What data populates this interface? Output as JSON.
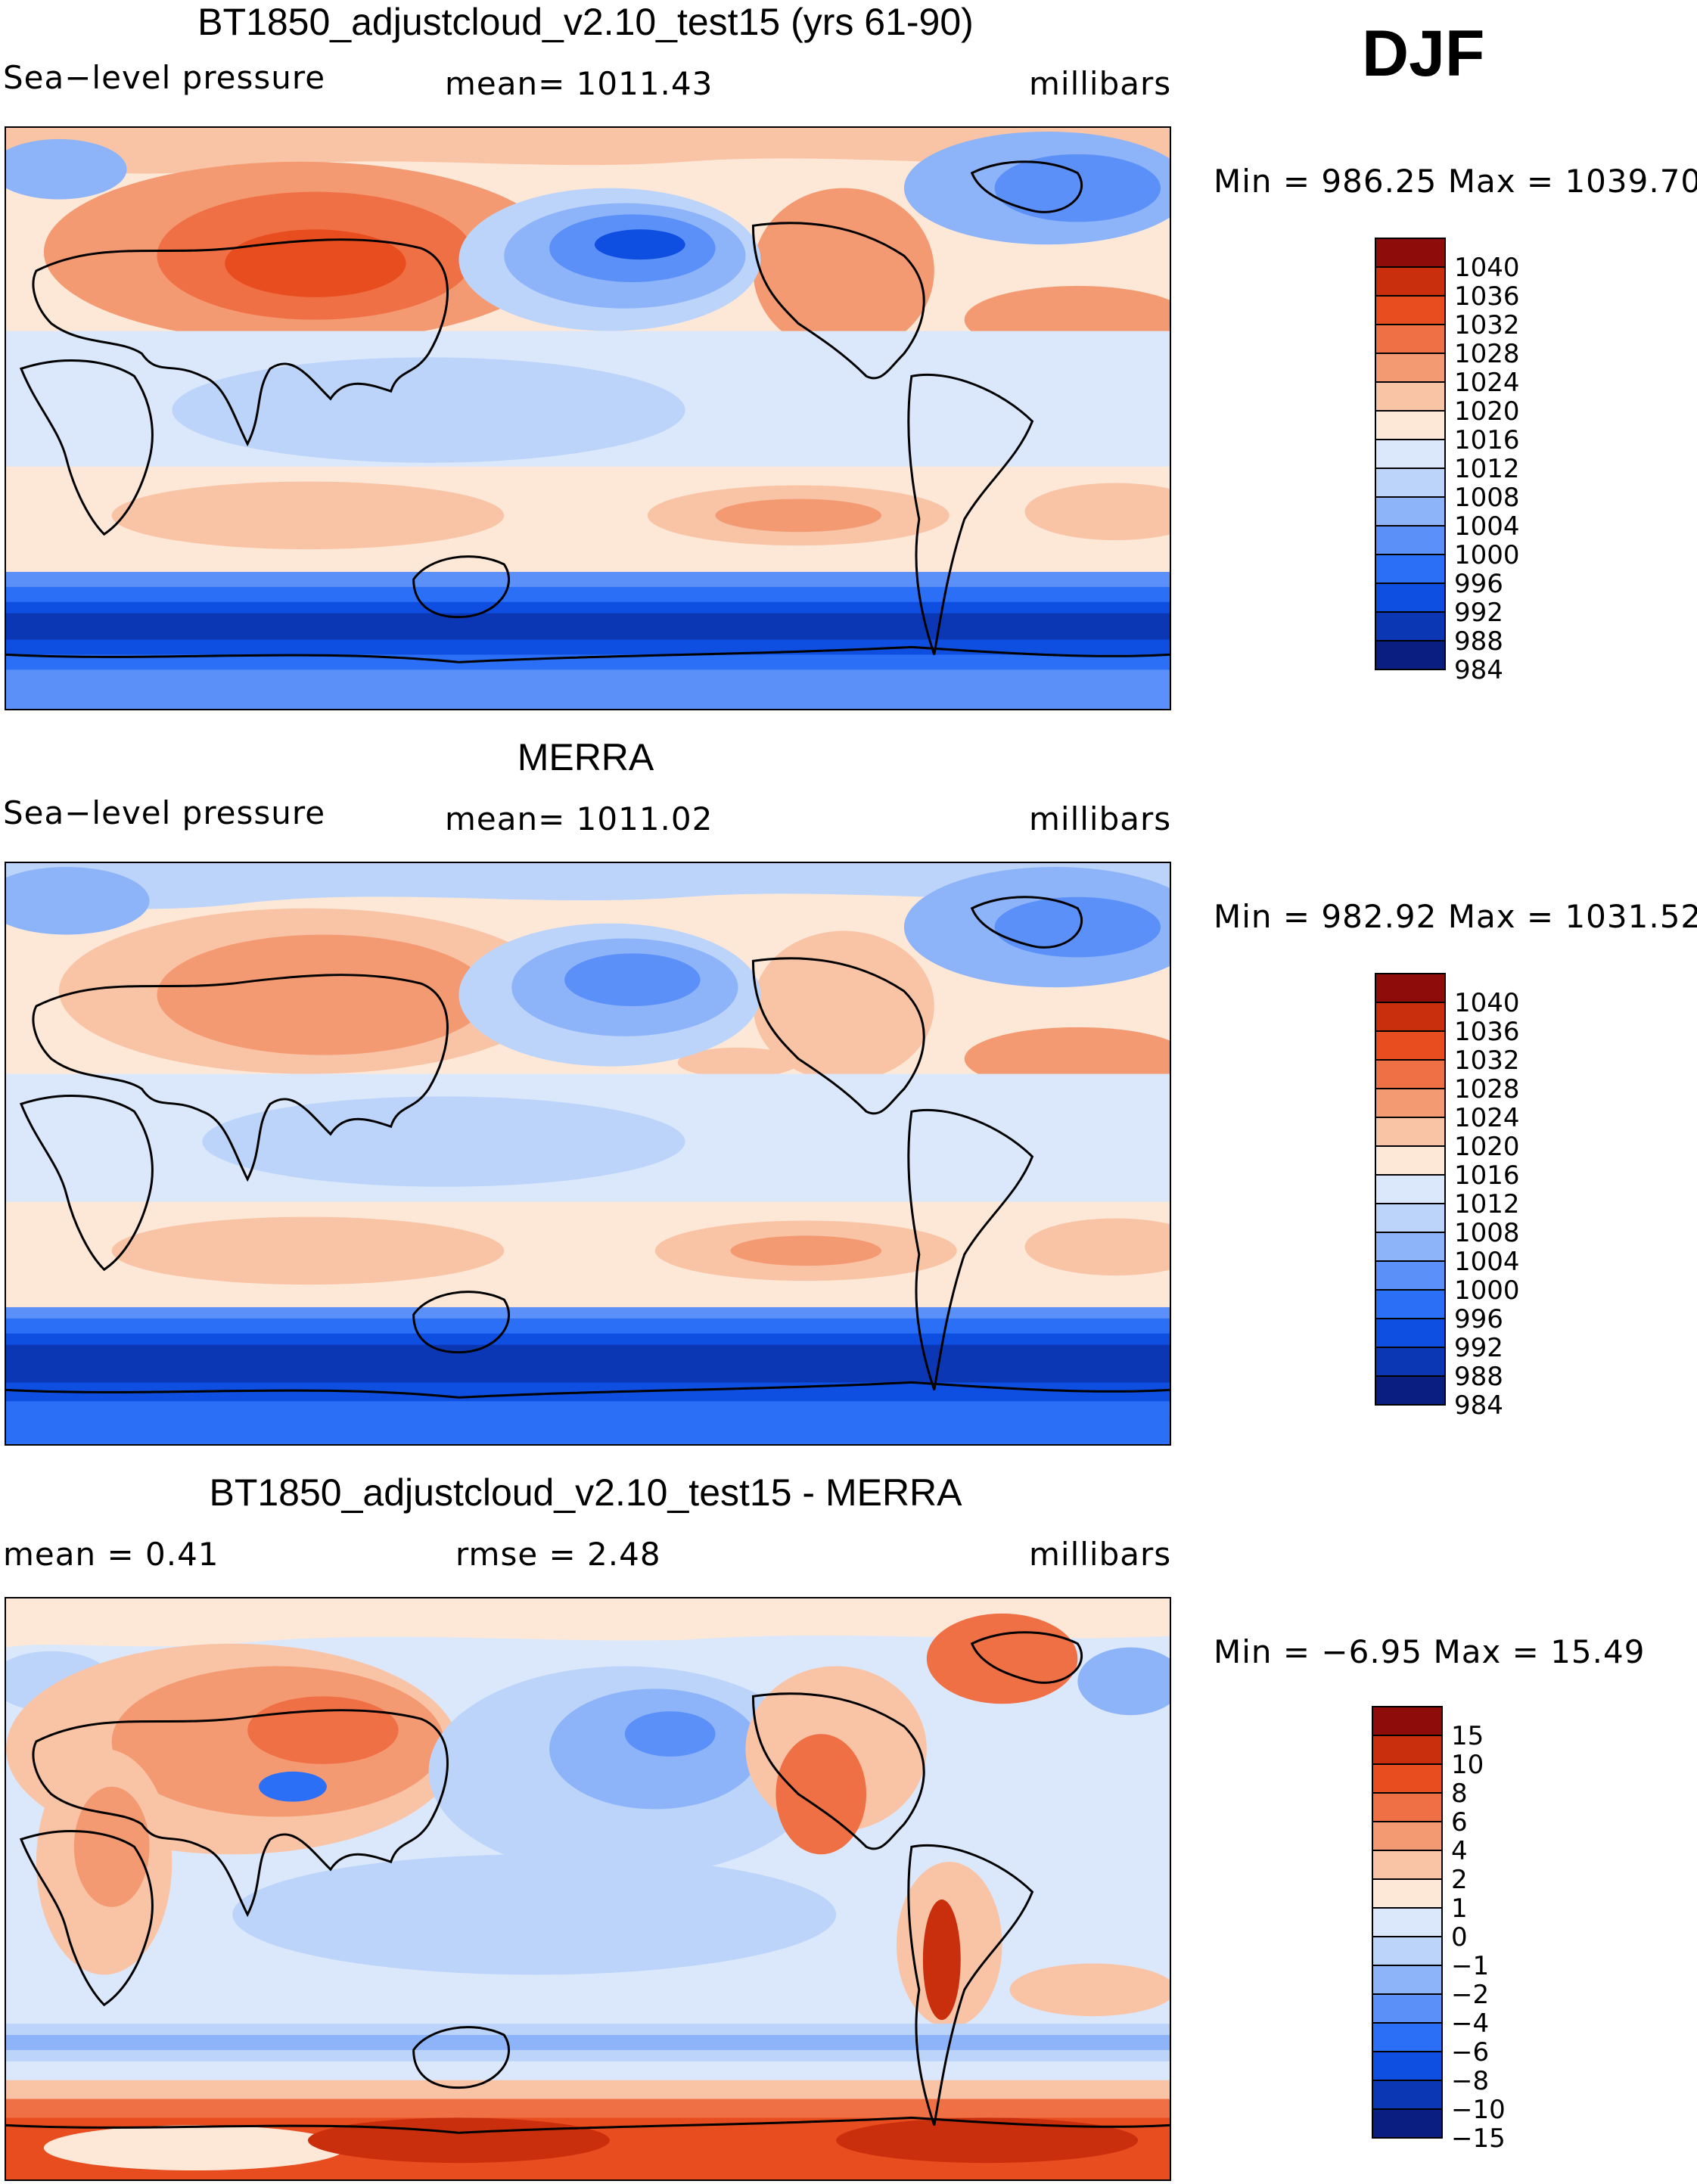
{
  "season": "DJF",
  "colors": {
    "pressure": [
      "#0a1e82",
      "#0b37b4",
      "#0e4ee0",
      "#2a6ff5",
      "#5a90f7",
      "#8db3f8",
      "#bcd4f9",
      "#dbe8fb",
      "#fde8d8",
      "#f9c4a6",
      "#f49a72",
      "#f07046",
      "#e84d20",
      "#c92f0c",
      "#8e0d0a"
    ],
    "anomaly": [
      "#0a1e82",
      "#0b37b4",
      "#0e4ee0",
      "#2a6ff5",
      "#5a90f7",
      "#8db3f8",
      "#bcd4f9",
      "#dbe8fb",
      "#fde8d8",
      "#f9c4a6",
      "#f49a72",
      "#f07046",
      "#e84d20",
      "#c92f0c",
      "#8e0d0a"
    ],
    "land_outline": "#000000"
  },
  "panels": [
    {
      "title": "BT1850_adjustcloud_v2.10_test15 (yrs 61-90)",
      "left_label": "Sea−level  pressure",
      "center_label": "mean=  1011.43",
      "right_label": "millibars",
      "min_max": "Min  =  986.25  Max  =  1039.70",
      "colorbar_labels": [
        "1040",
        "1036",
        "1032",
        "1028",
        "1024",
        "1020",
        "1016",
        "1012",
        "1008",
        "1004",
        "1000",
        "996",
        "992",
        "988",
        "984"
      ]
    },
    {
      "title": "MERRA",
      "left_label": "Sea−level  pressure",
      "center_label": "mean=  1011.02",
      "right_label": "millibars",
      "min_max": "Min  =  982.92  Max  =  1031.52",
      "colorbar_labels": [
        "1040",
        "1036",
        "1032",
        "1028",
        "1024",
        "1020",
        "1016",
        "1012",
        "1008",
        "1004",
        "1000",
        "996",
        "992",
        "988",
        "984"
      ]
    },
    {
      "title": "BT1850_adjustcloud_v2.10_test15 - MERRA",
      "left_label": "mean  =      0.41",
      "center_label": "rmse  =      2.48",
      "right_label": "millibars",
      "min_max": "Min  =    −6.95  Max  =     15.49",
      "colorbar_labels": [
        "15",
        "10",
        "8",
        "6",
        "4",
        "2",
        "1",
        "0",
        "−1",
        "−2",
        "−4",
        "−6",
        "−8",
        "−10",
        "−15"
      ]
    }
  ]
}
